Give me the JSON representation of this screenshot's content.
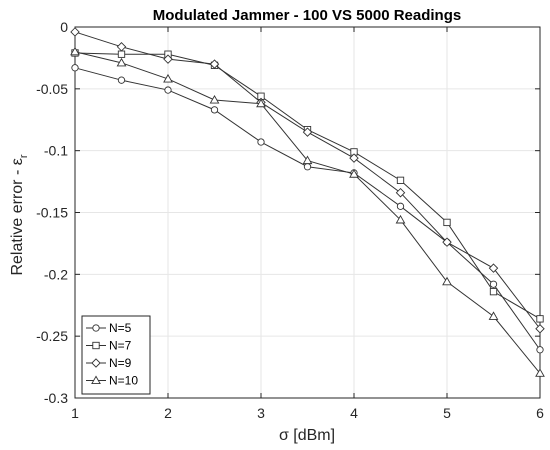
{
  "chart_data": {
    "type": "line",
    "title": "Modulated Jammer - 100 VS 5000 Readings",
    "xlabel": "σ [dBm]",
    "ylabel": "Relative error - ε",
    "ylabel_subscript": "r",
    "xlim": [
      1,
      6
    ],
    "ylim": [
      -0.3,
      0
    ],
    "xticks": [
      1,
      2,
      3,
      4,
      5,
      6
    ],
    "xtick_labels": [
      "1",
      "2",
      "3",
      "4",
      "5",
      "6"
    ],
    "yticks": [
      0,
      -0.05,
      -0.1,
      -0.15,
      -0.2,
      -0.25,
      -0.3
    ],
    "ytick_labels": [
      "0",
      "-0.05",
      "-0.1",
      "-0.15",
      "-0.2",
      "-0.25",
      "-0.3"
    ],
    "grid": true,
    "legend_position": "bottom-left",
    "line_color": "#333333",
    "grid_color": "#e6e6e6",
    "axis_color": "#262626",
    "x": [
      1,
      1.5,
      2,
      2.5,
      3,
      3.5,
      4,
      4.5,
      5,
      5.5,
      6
    ],
    "series": [
      {
        "name": "N=5",
        "marker": "circle",
        "values": [
          -0.033,
          -0.043,
          -0.051,
          -0.067,
          -0.093,
          -0.113,
          -0.118,
          -0.145,
          -0.174,
          -0.208,
          -0.261
        ]
      },
      {
        "name": "N=7",
        "marker": "square",
        "values": [
          -0.021,
          -0.022,
          -0.022,
          -0.031,
          -0.056,
          -0.083,
          -0.101,
          -0.124,
          -0.158,
          -0.214,
          -0.236
        ]
      },
      {
        "name": "N=9",
        "marker": "diamond",
        "values": [
          -0.004,
          -0.016,
          -0.026,
          -0.03,
          -0.061,
          -0.085,
          -0.106,
          -0.134,
          -0.174,
          -0.195,
          -0.244
        ]
      },
      {
        "name": "N=10",
        "marker": "triangle",
        "values": [
          -0.02,
          -0.029,
          -0.042,
          -0.059,
          -0.062,
          -0.108,
          -0.119,
          -0.156,
          -0.206,
          -0.234,
          -0.28
        ]
      }
    ]
  }
}
